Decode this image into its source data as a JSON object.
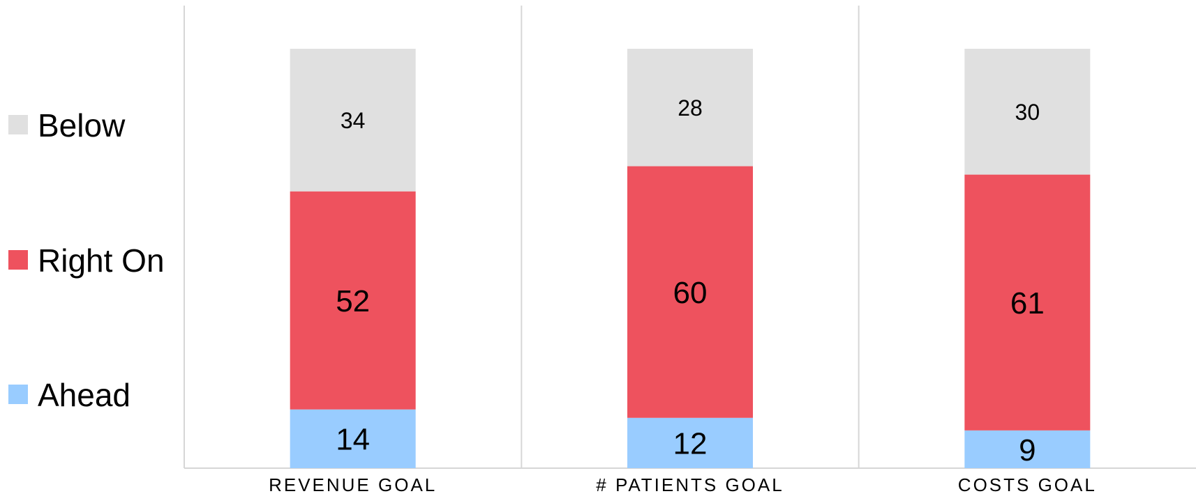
{
  "chart_data": {
    "type": "bar",
    "stacked": true,
    "categories": [
      "REVENUE GOAL",
      "# PATIENTS GOAL",
      "COSTS GOAL"
    ],
    "series": [
      {
        "name": "Ahead",
        "values": [
          14,
          12,
          9
        ],
        "color": "#99ccff"
      },
      {
        "name": "Right On",
        "values": [
          52,
          60,
          61
        ],
        "color": "#ee525e"
      },
      {
        "name": "Below",
        "values": [
          34,
          28,
          30
        ],
        "color": "#e0e0e0"
      }
    ],
    "ylim": [
      0,
      100
    ],
    "legend_placement": "left",
    "grid": false,
    "category_separators": true
  }
}
